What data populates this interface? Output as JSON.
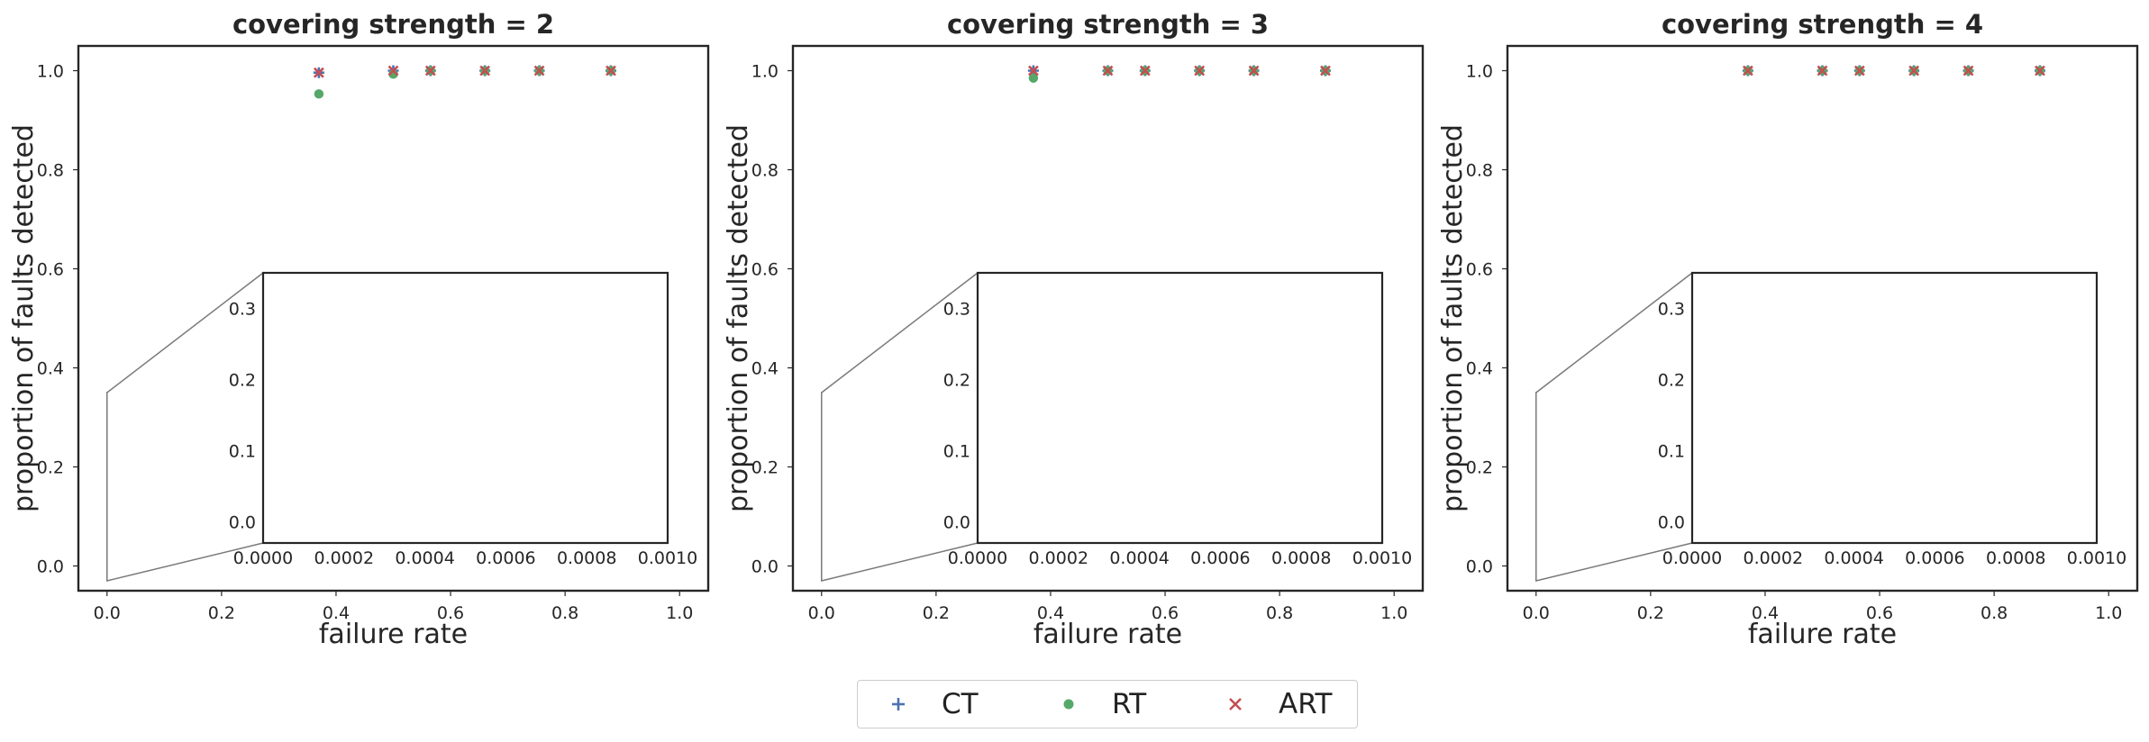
{
  "colors": {
    "CT": "#4c72b0",
    "RT": "#55a868",
    "ART": "#c44e52",
    "axis": "#262626",
    "connector": "#7a7a7a"
  },
  "legend": {
    "placement": "bottom-center",
    "entries": [
      {
        "label": "CT",
        "marker": "plus",
        "color": "#4c72b0"
      },
      {
        "label": "RT",
        "marker": "circle",
        "color": "#55a868"
      },
      {
        "label": "ART",
        "marker": "x",
        "color": "#c44e52"
      }
    ]
  },
  "chart_data": [
    {
      "type": "scatter",
      "title": "covering strength = 2",
      "xlabel": "failure rate",
      "ylabel": "proportion of faults detected",
      "xlim": [
        -0.05,
        1.05
      ],
      "ylim": [
        -0.05,
        1.05
      ],
      "xticks": [
        "0.0",
        "0.2",
        "0.4",
        "0.6",
        "0.8",
        "1.0"
      ],
      "yticks": [
        "0.0",
        "0.2",
        "0.4",
        "0.6",
        "0.8",
        "1.0"
      ],
      "grid": false,
      "series": [
        {
          "name": "CT",
          "x": [
            0.37,
            0.5,
            0.565,
            0.66,
            0.755,
            0.88
          ],
          "y": [
            0.996,
            1.0,
            1.0,
            1.0,
            1.0,
            1.0
          ]
        },
        {
          "name": "RT",
          "x": [
            0.37,
            0.5,
            0.565,
            0.66,
            0.755,
            0.88
          ],
          "y": [
            0.953,
            0.993,
            1.0,
            1.0,
            1.0,
            1.0
          ]
        },
        {
          "name": "ART",
          "x": [
            0.37,
            0.5,
            0.565,
            0.66,
            0.755,
            0.88
          ],
          "y": [
            0.996,
            1.0,
            1.0,
            1.0,
            1.0,
            1.0
          ]
        }
      ],
      "inset": {
        "xlim": [
          0,
          0.001
        ],
        "ylim": [
          -0.03,
          0.35
        ],
        "xticks": [
          "0.0000",
          "0.0002",
          "0.0004",
          "0.0006",
          "0.0008",
          "0.0010"
        ],
        "yticks": [
          "0.0",
          "0.1",
          "0.2",
          "0.3"
        ],
        "zoom_region": {
          "x": [
            0.0,
            0.001
          ],
          "y": [
            -0.03,
            0.35
          ]
        }
      }
    },
    {
      "type": "scatter",
      "title": "covering strength = 3",
      "xlabel": "failure rate",
      "ylabel": "proportion of faults detected",
      "xlim": [
        -0.05,
        1.05
      ],
      "ylim": [
        -0.05,
        1.05
      ],
      "xticks": [
        "0.0",
        "0.2",
        "0.4",
        "0.6",
        "0.8",
        "1.0"
      ],
      "yticks": [
        "0.0",
        "0.2",
        "0.4",
        "0.6",
        "0.8",
        "1.0"
      ],
      "grid": false,
      "series": [
        {
          "name": "CT",
          "x": [
            0.37,
            0.5,
            0.565,
            0.66,
            0.755,
            0.88
          ],
          "y": [
            1.0,
            1.0,
            1.0,
            1.0,
            1.0,
            1.0
          ]
        },
        {
          "name": "RT",
          "x": [
            0.37,
            0.5,
            0.565,
            0.66,
            0.755,
            0.88
          ],
          "y": [
            0.985,
            1.0,
            1.0,
            1.0,
            1.0,
            1.0
          ]
        },
        {
          "name": "ART",
          "x": [
            0.37,
            0.5,
            0.565,
            0.66,
            0.755,
            0.88
          ],
          "y": [
            1.0,
            1.0,
            1.0,
            1.0,
            1.0,
            1.0
          ]
        }
      ],
      "inset": {
        "xlim": [
          0,
          0.001
        ],
        "ylim": [
          -0.03,
          0.35
        ],
        "xticks": [
          "0.0000",
          "0.0002",
          "0.0004",
          "0.0006",
          "0.0008",
          "0.0010"
        ],
        "yticks": [
          "0.0",
          "0.1",
          "0.2",
          "0.3"
        ],
        "zoom_region": {
          "x": [
            0.0,
            0.001
          ],
          "y": [
            -0.03,
            0.35
          ]
        }
      }
    },
    {
      "type": "scatter",
      "title": "covering strength = 4",
      "xlabel": "failure rate",
      "ylabel": "proportion of faults detected",
      "xlim": [
        -0.05,
        1.05
      ],
      "ylim": [
        -0.05,
        1.05
      ],
      "xticks": [
        "0.0",
        "0.2",
        "0.4",
        "0.6",
        "0.8",
        "1.0"
      ],
      "yticks": [
        "0.0",
        "0.2",
        "0.4",
        "0.6",
        "0.8",
        "1.0"
      ],
      "grid": false,
      "series": [
        {
          "name": "CT",
          "x": [
            0.37,
            0.5,
            0.565,
            0.66,
            0.755,
            0.88
          ],
          "y": [
            1.0,
            1.0,
            1.0,
            1.0,
            1.0,
            1.0
          ]
        },
        {
          "name": "RT",
          "x": [
            0.37,
            0.5,
            0.565,
            0.66,
            0.755,
            0.88
          ],
          "y": [
            1.0,
            1.0,
            1.0,
            1.0,
            1.0,
            1.0
          ]
        },
        {
          "name": "ART",
          "x": [
            0.37,
            0.5,
            0.565,
            0.66,
            0.755,
            0.88
          ],
          "y": [
            1.0,
            1.0,
            1.0,
            1.0,
            1.0,
            1.0
          ]
        }
      ],
      "inset": {
        "xlim": [
          0,
          0.001
        ],
        "ylim": [
          -0.03,
          0.35
        ],
        "xticks": [
          "0.0000",
          "0.0002",
          "0.0004",
          "0.0006",
          "0.0008",
          "0.0010"
        ],
        "yticks": [
          "0.0",
          "0.1",
          "0.2",
          "0.3"
        ],
        "zoom_region": {
          "x": [
            0.0,
            0.001
          ],
          "y": [
            -0.03,
            0.35
          ]
        }
      }
    }
  ]
}
